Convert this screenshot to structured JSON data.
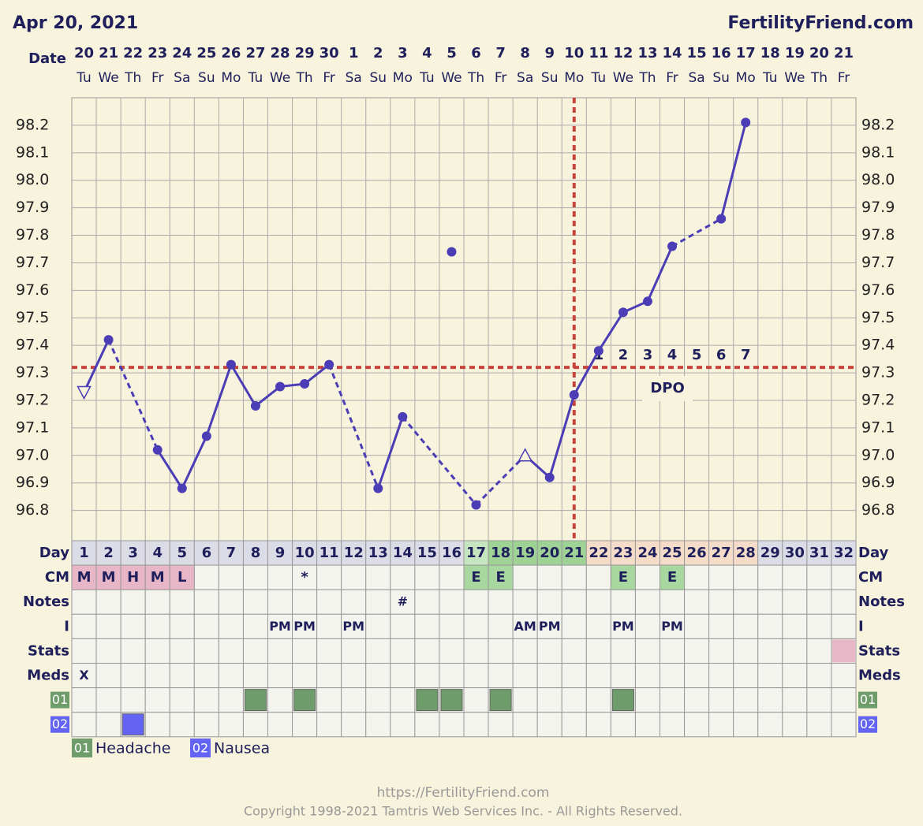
{
  "header": {
    "date": "Apr 20, 2021",
    "site": "FertilityFriend.com",
    "date_label": "Date"
  },
  "chart_data": {
    "type": "line",
    "dates": [
      20,
      21,
      22,
      23,
      24,
      25,
      26,
      27,
      28,
      29,
      30,
      1,
      2,
      3,
      4,
      5,
      6,
      7,
      8,
      9,
      10,
      11,
      12,
      13,
      14,
      15,
      16,
      17,
      18,
      19,
      20,
      21
    ],
    "weekdays": [
      "Tu",
      "We",
      "Th",
      "Fr",
      "Sa",
      "Su",
      "Mo",
      "Tu",
      "We",
      "Th",
      "Fr",
      "Sa",
      "Su",
      "Mo",
      "Tu",
      "We",
      "Th",
      "Fr",
      "Sa",
      "Su",
      "Mo",
      "Tu",
      "We",
      "Th",
      "Fr",
      "Sa",
      "Su",
      "Mo",
      "Tu",
      "We",
      "Th",
      "Fr"
    ],
    "cycle_days": [
      1,
      2,
      3,
      4,
      5,
      6,
      7,
      8,
      9,
      10,
      11,
      12,
      13,
      14,
      15,
      16,
      17,
      18,
      19,
      20,
      21,
      22,
      23,
      24,
      25,
      26,
      27,
      28,
      29,
      30,
      31,
      32
    ],
    "temperatures": [
      97.23,
      97.42,
      null,
      97.02,
      96.88,
      97.07,
      97.33,
      97.18,
      97.25,
      97.26,
      97.33,
      null,
      96.88,
      97.14,
      null,
      97.74,
      96.82,
      null,
      97.0,
      96.92,
      97.22,
      97.38,
      97.52,
      97.56,
      97.76,
      null,
      97.86,
      98.21,
      null,
      null,
      null,
      null
    ],
    "open_marker_days": [
      1,
      19
    ],
    "discarded_days": [
      16
    ],
    "color": "#4b3db5",
    "ylim": [
      96.69,
      98.3
    ],
    "yticks": [
      96.8,
      96.9,
      {
        "value": 97.0,
        "label": "97.0"
      },
      97.1,
      97.2,
      97.3,
      97.4,
      97.5,
      97.6,
      97.7,
      97.8,
      97.9,
      {
        "value": 98.0,
        "label": "98.0"
      },
      98.1,
      98.2
    ],
    "grid": true,
    "coverline": 97.32,
    "ovulation_day": 21,
    "line_color": "#c8453e",
    "dpo": [
      1,
      2,
      3,
      4,
      5,
      6,
      7
    ],
    "dpo_label": "DPO"
  },
  "table": {
    "row_labels": [
      "Day",
      "CM",
      "Notes",
      "I",
      "Stats",
      "Meds"
    ],
    "day_colors": [
      "#dcdce6",
      "#dcdce6",
      "#dcdce6",
      "#dcdce6",
      "#dcdce6",
      "#dcdce6",
      "#dcdce6",
      "#dcdce6",
      "#dcdce6",
      "#dcdce6",
      "#dcdce6",
      "#dcdce6",
      "#dcdce6",
      "#dcdce6",
      "#dcdce6",
      "#dcdce6",
      "#c6e6bf",
      "#9fd396",
      "#9fd396",
      "#9fd396",
      "#9fd396",
      "#f4dcc8",
      "#f4dcc8",
      "#f4dcc8",
      "#f4dcc8",
      "#f4dcc8",
      "#f4dcc8",
      "#f4dcc8",
      "#dcdce6",
      "#dcdce6",
      "#dcdce6",
      "#dcdce6"
    ],
    "cm": [
      "M",
      "M",
      "H",
      "M",
      "L",
      null,
      null,
      null,
      null,
      "*",
      null,
      null,
      null,
      null,
      null,
      null,
      "E",
      "E",
      null,
      null,
      null,
      null,
      "E",
      null,
      "E",
      null,
      null,
      null,
      null,
      null,
      null,
      null
    ],
    "cm_colors": {
      "M": "#e7b7c7",
      "H": "#e7b7c7",
      "L": "#e7b7c7",
      "E": "#a8d89f"
    },
    "notes": [
      null,
      null,
      null,
      null,
      null,
      null,
      null,
      null,
      null,
      null,
      null,
      null,
      null,
      "#",
      null,
      null,
      null,
      null,
      null,
      null,
      null,
      null,
      null,
      null,
      null,
      null,
      null,
      null,
      null,
      null,
      null,
      null
    ],
    "intercourse": [
      null,
      null,
      null,
      null,
      null,
      null,
      null,
      null,
      "PM",
      "PM",
      null,
      "PM",
      null,
      null,
      null,
      null,
      null,
      null,
      "AM",
      "PM",
      null,
      null,
      "PM",
      null,
      "PM",
      null,
      null,
      null,
      null,
      null,
      null,
      null
    ],
    "stats_days": [
      32
    ],
    "stats_color": "#e7b7c7",
    "meds": [
      "X",
      null,
      null,
      null,
      null,
      null,
      null,
      null,
      null,
      null,
      null,
      null,
      null,
      null,
      null,
      null,
      null,
      null,
      null,
      null,
      null,
      null,
      null,
      null,
      null,
      null,
      null,
      null,
      null,
      null,
      null,
      null
    ],
    "symptoms": [
      {
        "code": "01",
        "name": "Headache",
        "color": "#6e9c6a",
        "days": [
          8,
          10,
          15,
          16,
          18,
          23
        ]
      },
      {
        "code": "02",
        "name": "Nausea",
        "color": "#6464f4",
        "days": [
          3
        ]
      }
    ]
  },
  "footer": {
    "url": "https://FertilityFriend.com",
    "copyright": "Copyright 1998-2021 Tamtris Web Services Inc. - All Rights Reserved."
  }
}
